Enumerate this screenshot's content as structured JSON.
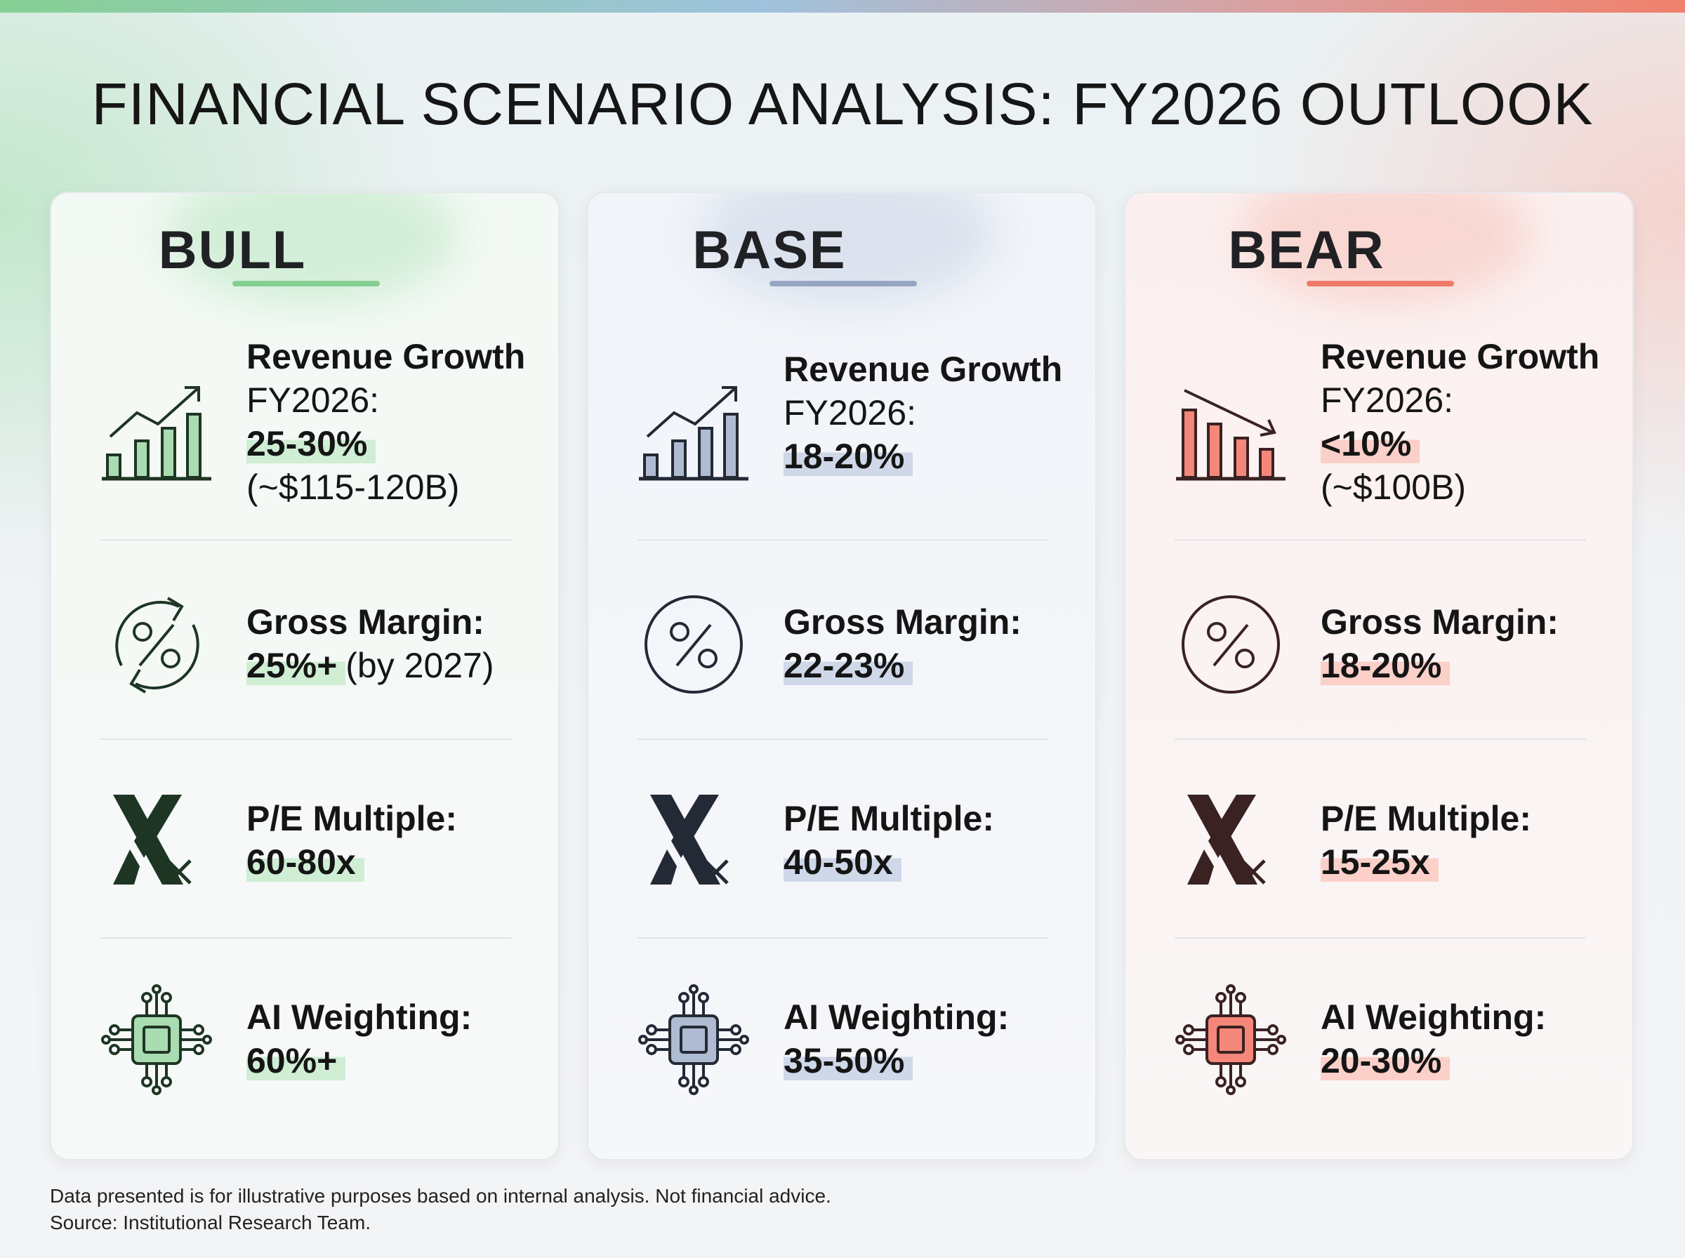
{
  "title": "FINANCIAL SCENARIO ANALYSIS: FY2026 OUTLOOK",
  "colors": {
    "bull": "#86cf93",
    "base": "#95a6c2",
    "bear": "#ef7a68"
  },
  "scenarios": [
    {
      "name": "BULL",
      "revenue_label": "Revenue Growth",
      "revenue_sub": "FY2026:",
      "revenue_value": "25-30%",
      "revenue_detail": "(~$115-120B)",
      "margin_label": "Gross Margin:",
      "margin_value": "25%+",
      "margin_detail": "(by 2027)",
      "pe_label": "P/E Multiple:",
      "pe_value": "60-80x",
      "ai_label": "AI Weighting:",
      "ai_value": "60%+"
    },
    {
      "name": "BASE",
      "revenue_label": "Revenue Growth",
      "revenue_sub": "FY2026:",
      "revenue_value": "18-20%",
      "margin_label": "Gross Margin:",
      "margin_value": "22-23%",
      "pe_label": "P/E Multiple:",
      "pe_value": "40-50x",
      "ai_label": "AI Weighting:",
      "ai_value": "35-50%"
    },
    {
      "name": "BEAR",
      "revenue_label": "Revenue Growth",
      "revenue_sub": "FY2026:",
      "revenue_value": "<10%",
      "revenue_detail": "(~$100B)",
      "margin_label": "Gross Margin:",
      "margin_value": "18-20%",
      "pe_label": "P/E Multiple:",
      "pe_value": "15-25x",
      "ai_label": "AI Weighting:",
      "ai_value": "20-30%"
    }
  ],
  "footer": {
    "line1": "Data presented is for illustrative purposes based on internal analysis. Not financial advice.",
    "line2": "Source: Institutional Research Team."
  }
}
